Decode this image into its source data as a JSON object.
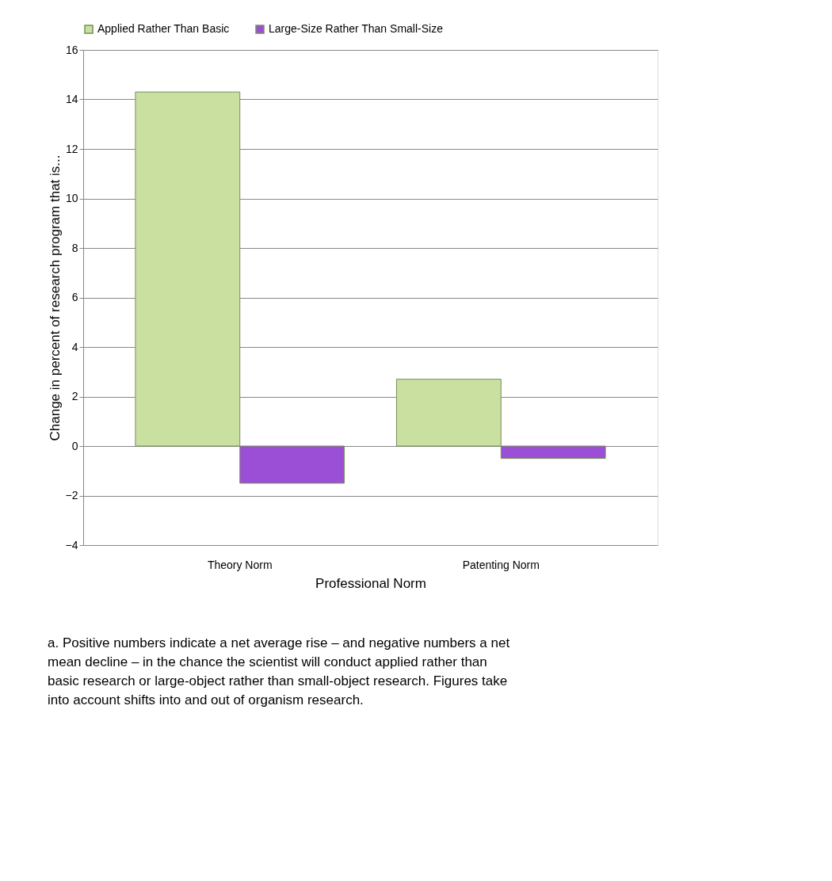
{
  "chart_data": {
    "type": "bar",
    "categories": [
      "Theory Norm",
      "Patenting Norm"
    ],
    "series": [
      {
        "name": "Applied Rather Than Basic",
        "color": "#c9e0a0",
        "values": [
          14.3,
          2.7
        ]
      },
      {
        "name": "Large-Size Rather Than Small-Size",
        "color": "#9b4fd6",
        "values": [
          -1.5,
          -0.5
        ]
      }
    ],
    "xlabel": "Professional Norm",
    "ylabel": "Change in percent of research program that is...",
    "ylim": [
      -4,
      16
    ],
    "yticks": [
      -4,
      -2,
      0,
      2,
      4,
      6,
      8,
      10,
      12,
      14,
      16
    ],
    "grid": "y",
    "legend": "top",
    "annotations": [
      "a.  Positive numbers indicate a net average rise – and negative numbers a net mean decline – in the chance the scientist will conduct applied rather than basic research or large-object rather than small-object research. Figures take into account shifts into and out of organism research."
    ]
  }
}
